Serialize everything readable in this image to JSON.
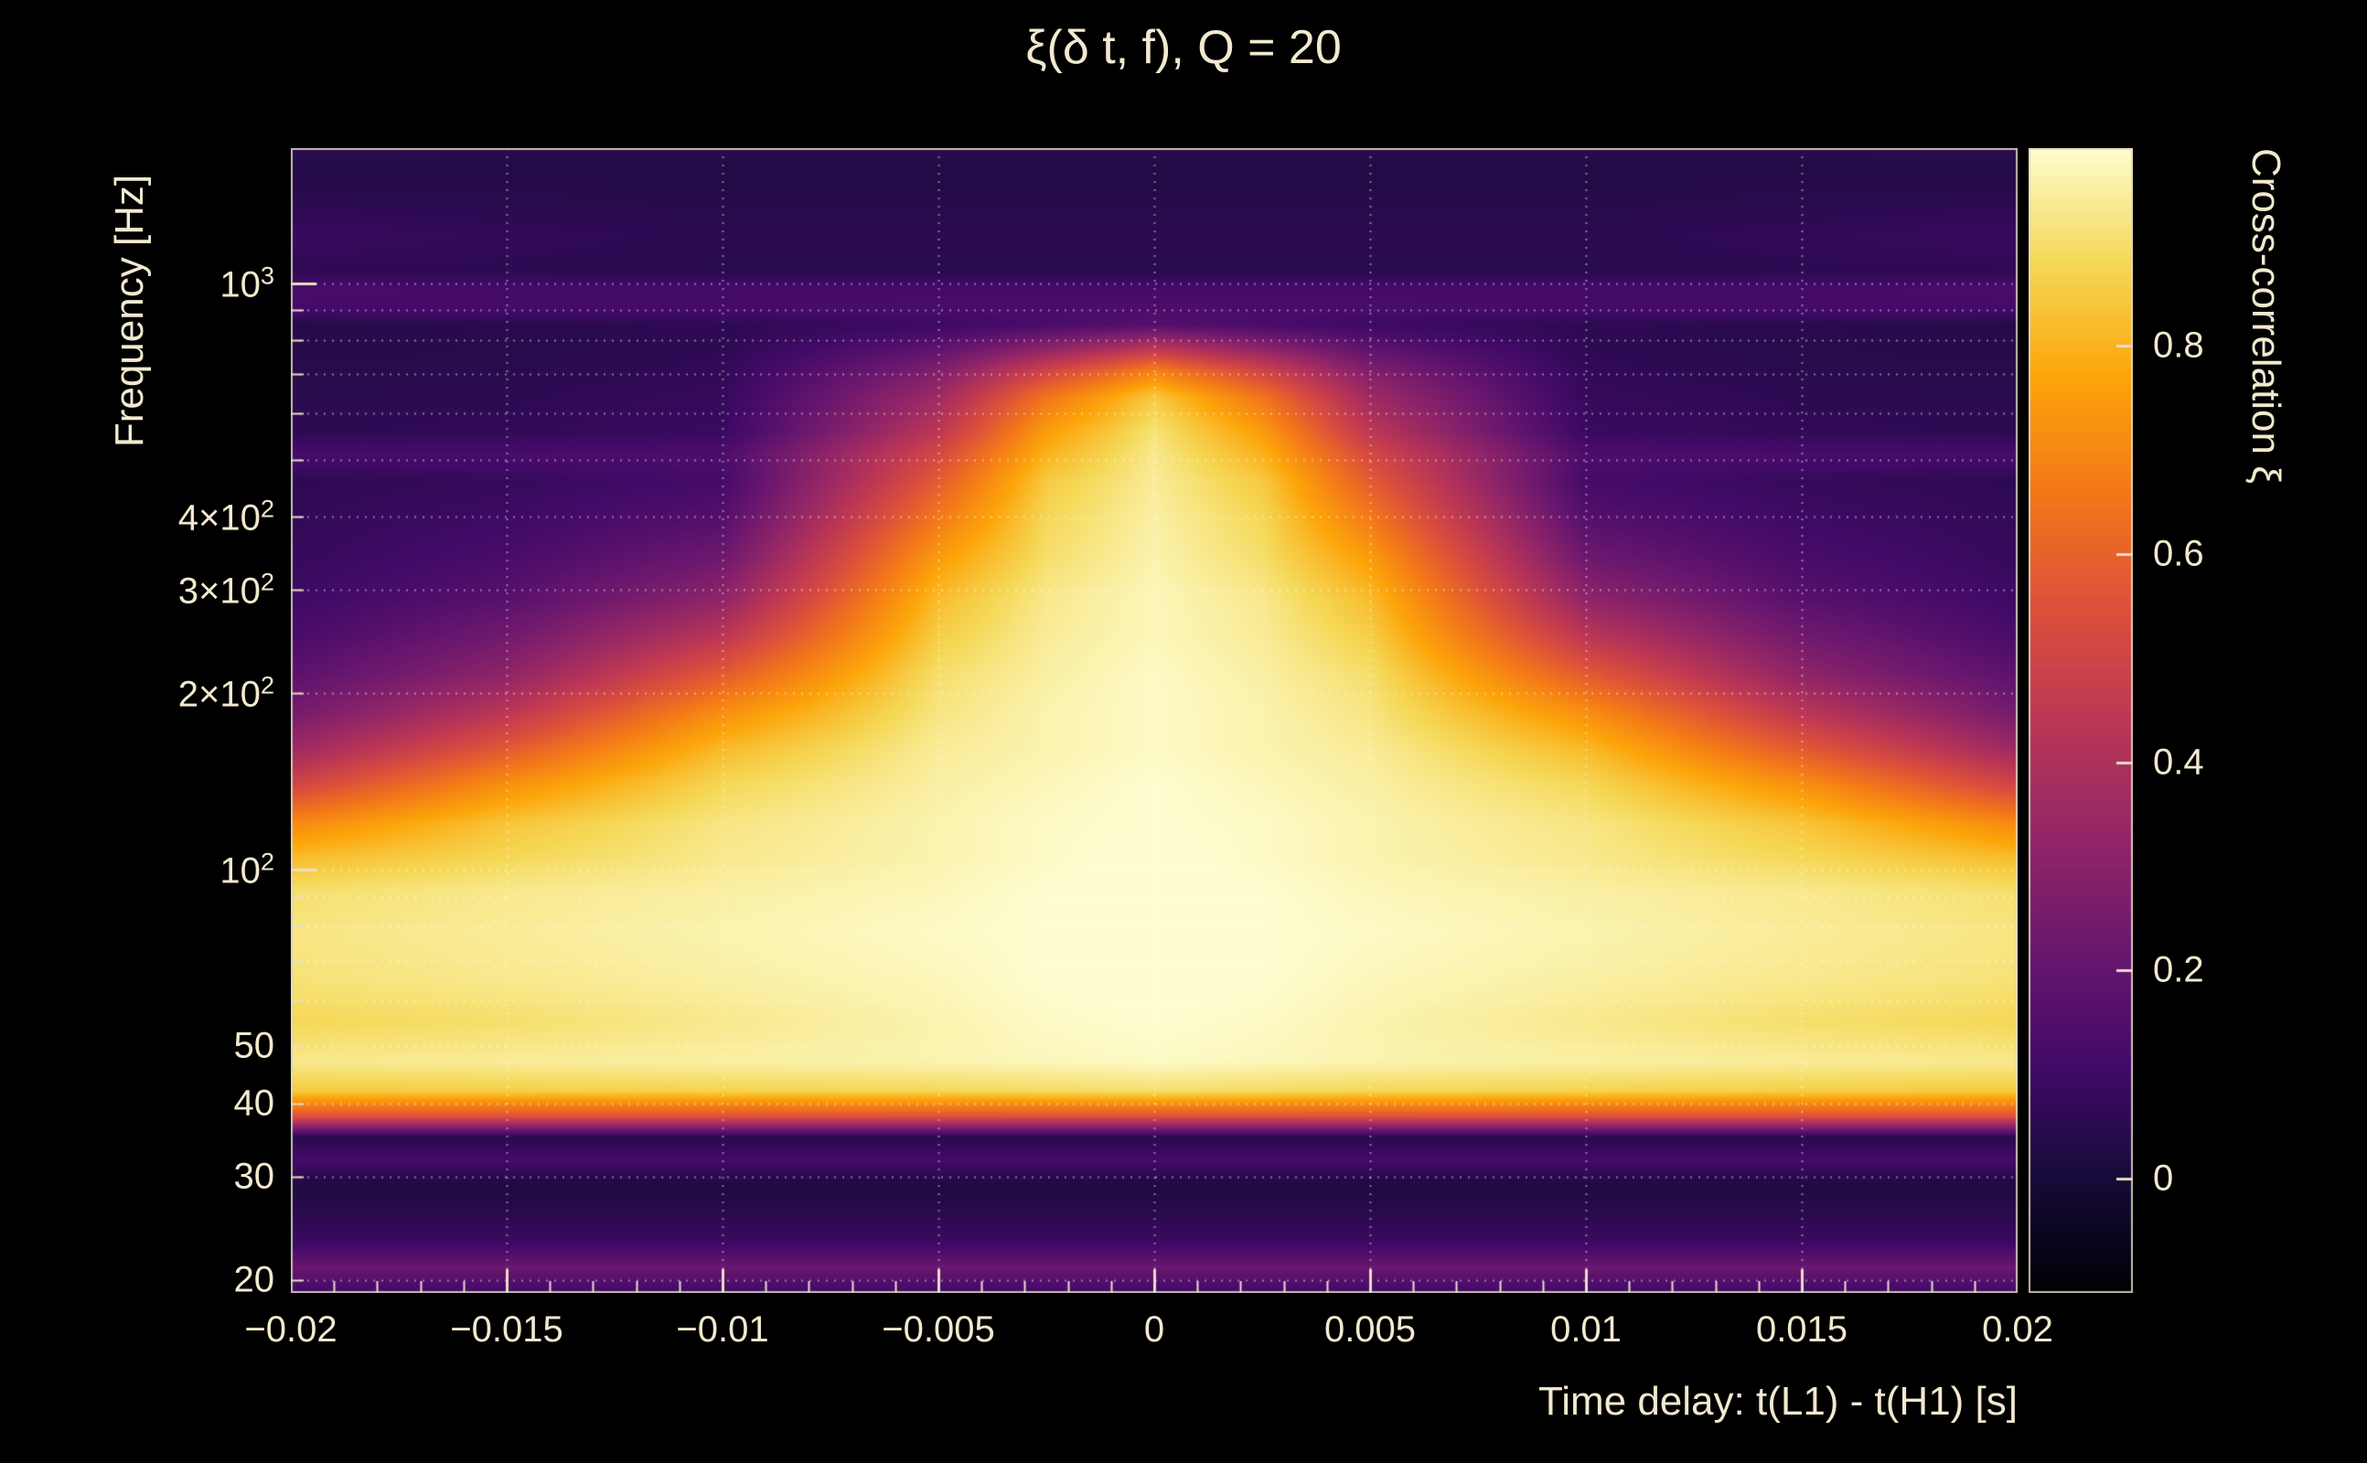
{
  "colors": {
    "background": "#000000",
    "text": "#f2e9cf",
    "tick": "#e9e0c4",
    "frame": "rgba(222,214,190,0.85)",
    "grid": "rgba(255,255,255,0.45)"
  },
  "chart_data": {
    "type": "heatmap",
    "title": "ξ(δ t, f), Q = 20",
    "q_value": 20,
    "xlabel": "Time delay: t(L1) - t(H1) [s]",
    "ylabel": "Frequency [Hz]",
    "colorbar_label": "Cross-correlation ξ",
    "x_range": [
      -0.02,
      0.02
    ],
    "y_range": [
      19,
      1700
    ],
    "y_scale": "log",
    "value_range": [
      -0.11,
      0.99
    ],
    "x_ticks": [
      {
        "value": -0.02,
        "label": "−0.02"
      },
      {
        "value": -0.015,
        "label": "−0.015"
      },
      {
        "value": -0.01,
        "label": "−0.01"
      },
      {
        "value": -0.005,
        "label": "−0.005"
      },
      {
        "value": 0,
        "label": "0"
      },
      {
        "value": 0.005,
        "label": "0.005"
      },
      {
        "value": 0.01,
        "label": "0.01"
      },
      {
        "value": 0.015,
        "label": "0.015"
      },
      {
        "value": 0.02,
        "label": "0.02"
      }
    ],
    "x_minor_tick_step": 0.001,
    "y_ticks": [
      {
        "value": 1000,
        "base": "10",
        "exp": "3"
      },
      {
        "value": 400,
        "base": "4×10",
        "exp": "2"
      },
      {
        "value": 300,
        "base": "3×10",
        "exp": "2"
      },
      {
        "value": 200,
        "base": "2×10",
        "exp": "2"
      },
      {
        "value": 100,
        "base": "10",
        "exp": "2"
      },
      {
        "value": 50,
        "base": "50",
        "exp": null
      },
      {
        "value": 40,
        "base": "40",
        "exp": null
      },
      {
        "value": 30,
        "base": "30",
        "exp": null
      },
      {
        "value": 20,
        "base": "20",
        "exp": null
      }
    ],
    "colorbar_ticks": [
      {
        "value": 0.8,
        "label": "0.8"
      },
      {
        "value": 0.6,
        "label": "0.6"
      },
      {
        "value": 0.4,
        "label": "0.4"
      },
      {
        "value": 0.2,
        "label": "0.2"
      },
      {
        "value": 0,
        "label": "0"
      }
    ],
    "grid_x": [
      -0.015,
      -0.01,
      -0.005,
      0,
      0.005,
      0.01,
      0.015
    ],
    "grid_y": [
      20,
      30,
      40,
      50,
      60,
      70,
      80,
      90,
      100,
      200,
      300,
      400,
      500,
      600,
      700,
      800,
      900,
      1000
    ],
    "colormap": "inferno",
    "colormap_stops": [
      {
        "t": 0.0,
        "color": "#000004"
      },
      {
        "t": 0.1,
        "color": "#160b39"
      },
      {
        "t": 0.2,
        "color": "#420a68"
      },
      {
        "t": 0.3,
        "color": "#6a176e"
      },
      {
        "t": 0.4,
        "color": "#932667"
      },
      {
        "t": 0.5,
        "color": "#bc3754"
      },
      {
        "t": 0.6,
        "color": "#dd513a"
      },
      {
        "t": 0.7,
        "color": "#f37819"
      },
      {
        "t": 0.8,
        "color": "#fca50a"
      },
      {
        "t": 0.9,
        "color": "#f5d857"
      },
      {
        "t": 1.0,
        "color": "#fdfdd0"
      }
    ],
    "heatmap": {
      "dt": [
        -0.02,
        -0.015,
        -0.01,
        -0.005,
        -0.0025,
        0,
        0.0025,
        0.005,
        0.01,
        0.015,
        0.02
      ],
      "freq": [
        19,
        21,
        23,
        26,
        29,
        32,
        35,
        38,
        42,
        47,
        55,
        65,
        78,
        92,
        105,
        120,
        140,
        160,
        185,
        215,
        250,
        290,
        340,
        400,
        460,
        510,
        560,
        640,
        710,
        780,
        850,
        900,
        980,
        1050,
        1200,
        1400,
        1550,
        1700
      ],
      "values": [
        [
          0.1,
          0.1,
          0.1,
          0.1,
          0.1,
          0.1,
          0.1,
          0.1,
          0.1,
          0.1,
          0.1
        ],
        [
          0.22,
          0.22,
          0.22,
          0.22,
          0.22,
          0.22,
          0.22,
          0.22,
          0.22,
          0.22,
          0.22
        ],
        [
          0.1,
          0.1,
          0.1,
          0.1,
          0.1,
          0.1,
          0.1,
          0.1,
          0.1,
          0.1,
          0.1
        ],
        [
          0.05,
          0.05,
          0.05,
          0.05,
          0.05,
          0.05,
          0.05,
          0.05,
          0.05,
          0.05,
          0.05
        ],
        [
          0.02,
          0.02,
          0.02,
          0.02,
          0.02,
          0.02,
          0.02,
          0.02,
          0.02,
          0.02,
          0.02
        ],
        [
          0.12,
          0.12,
          0.12,
          0.12,
          0.12,
          0.12,
          0.12,
          0.12,
          0.12,
          0.12,
          0.12
        ],
        [
          0.05,
          0.05,
          0.05,
          0.05,
          0.05,
          0.05,
          0.05,
          0.05,
          0.05,
          0.05,
          0.05
        ],
        [
          0.55,
          0.55,
          0.55,
          0.55,
          0.55,
          0.55,
          0.55,
          0.55,
          0.55,
          0.55,
          0.55
        ],
        [
          0.85,
          0.86,
          0.87,
          0.88,
          0.89,
          0.9,
          0.89,
          0.88,
          0.87,
          0.86,
          0.85
        ],
        [
          0.93,
          0.94,
          0.95,
          0.96,
          0.97,
          0.98,
          0.97,
          0.96,
          0.95,
          0.94,
          0.93
        ],
        [
          0.88,
          0.9,
          0.93,
          0.96,
          0.98,
          0.99,
          0.98,
          0.96,
          0.93,
          0.9,
          0.88
        ],
        [
          0.91,
          0.93,
          0.95,
          0.97,
          0.99,
          1.0,
          0.99,
          0.97,
          0.95,
          0.93,
          0.91
        ],
        [
          0.92,
          0.94,
          0.96,
          0.98,
          0.99,
          1.0,
          0.99,
          0.98,
          0.96,
          0.94,
          0.92
        ],
        [
          0.9,
          0.93,
          0.95,
          0.97,
          0.99,
          1.0,
          0.99,
          0.97,
          0.95,
          0.93,
          0.9
        ],
        [
          0.82,
          0.88,
          0.93,
          0.96,
          0.98,
          1.0,
          0.98,
          0.96,
          0.93,
          0.88,
          0.82
        ],
        [
          0.7,
          0.84,
          0.92,
          0.96,
          0.98,
          0.99,
          0.98,
          0.96,
          0.92,
          0.84,
          0.7
        ],
        [
          0.5,
          0.72,
          0.88,
          0.95,
          0.97,
          0.99,
          0.97,
          0.95,
          0.88,
          0.72,
          0.5
        ],
        [
          0.36,
          0.58,
          0.82,
          0.94,
          0.96,
          0.98,
          0.96,
          0.94,
          0.82,
          0.58,
          0.36
        ],
        [
          0.25,
          0.44,
          0.72,
          0.92,
          0.96,
          0.98,
          0.96,
          0.92,
          0.72,
          0.44,
          0.25
        ],
        [
          0.18,
          0.32,
          0.58,
          0.9,
          0.95,
          0.98,
          0.95,
          0.9,
          0.58,
          0.32,
          0.18
        ],
        [
          0.13,
          0.24,
          0.44,
          0.86,
          0.94,
          0.97,
          0.94,
          0.86,
          0.44,
          0.24,
          0.13
        ],
        [
          0.1,
          0.17,
          0.32,
          0.82,
          0.93,
          0.97,
          0.93,
          0.82,
          0.32,
          0.17,
          0.1
        ],
        [
          0.08,
          0.13,
          0.23,
          0.75,
          0.9,
          0.96,
          0.9,
          0.75,
          0.23,
          0.13,
          0.08
        ],
        [
          0.07,
          0.1,
          0.16,
          0.66,
          0.88,
          0.95,
          0.88,
          0.66,
          0.16,
          0.1,
          0.07
        ],
        [
          0.06,
          0.08,
          0.12,
          0.58,
          0.85,
          0.94,
          0.85,
          0.58,
          0.12,
          0.08,
          0.06
        ],
        [
          0.13,
          0.13,
          0.14,
          0.52,
          0.8,
          0.93,
          0.8,
          0.52,
          0.14,
          0.13,
          0.13
        ],
        [
          0.06,
          0.07,
          0.09,
          0.44,
          0.75,
          0.91,
          0.75,
          0.44,
          0.09,
          0.07,
          0.06
        ],
        [
          0.05,
          0.06,
          0.08,
          0.36,
          0.65,
          0.85,
          0.65,
          0.36,
          0.08,
          0.06,
          0.05
        ],
        [
          0.05,
          0.05,
          0.07,
          0.28,
          0.5,
          0.68,
          0.5,
          0.28,
          0.07,
          0.05,
          0.05
        ],
        [
          0.04,
          0.05,
          0.06,
          0.18,
          0.3,
          0.42,
          0.3,
          0.18,
          0.06,
          0.05,
          0.04
        ],
        [
          0.04,
          0.05,
          0.06,
          0.1,
          0.13,
          0.16,
          0.13,
          0.1,
          0.06,
          0.05,
          0.04
        ],
        [
          0.12,
          0.12,
          0.12,
          0.13,
          0.13,
          0.14,
          0.13,
          0.13,
          0.12,
          0.12,
          0.12
        ],
        [
          0.13,
          0.12,
          0.12,
          0.12,
          0.12,
          0.12,
          0.12,
          0.12,
          0.12,
          0.12,
          0.13
        ],
        [
          0.06,
          0.06,
          0.05,
          0.05,
          0.05,
          0.05,
          0.05,
          0.05,
          0.05,
          0.06,
          0.06
        ],
        [
          0.09,
          0.07,
          0.06,
          0.06,
          0.06,
          0.06,
          0.06,
          0.06,
          0.06,
          0.07,
          0.09
        ],
        [
          0.05,
          0.05,
          0.04,
          0.04,
          0.04,
          0.04,
          0.04,
          0.04,
          0.04,
          0.05,
          0.05
        ],
        [
          0.03,
          0.03,
          0.03,
          0.03,
          0.03,
          0.03,
          0.03,
          0.03,
          0.03,
          0.03,
          0.03
        ],
        [
          0.06,
          0.05,
          0.05,
          0.05,
          0.05,
          0.05,
          0.05,
          0.05,
          0.05,
          0.05,
          0.06
        ]
      ]
    }
  }
}
